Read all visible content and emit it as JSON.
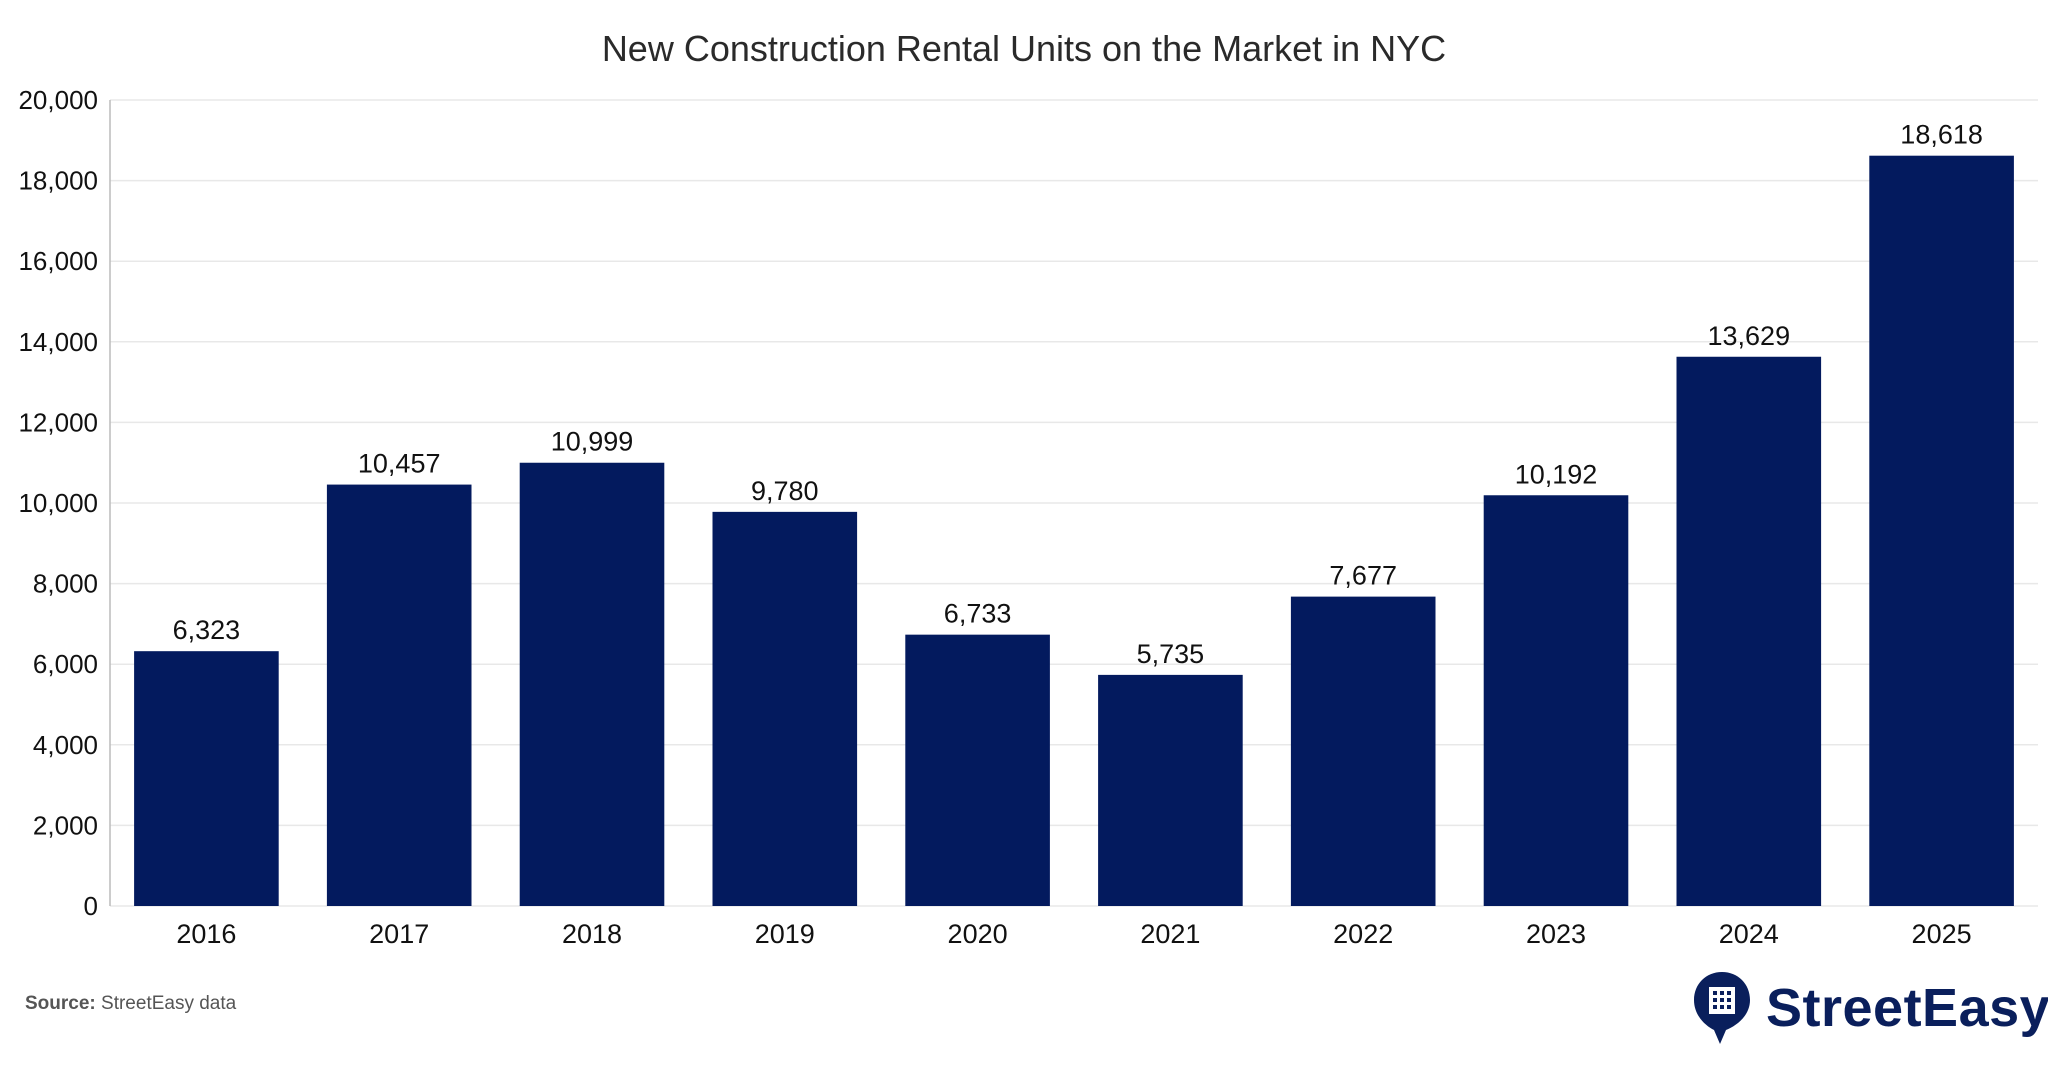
{
  "chart_data": {
    "type": "bar",
    "title": "New Construction Rental Units on the Market in NYC",
    "xlabel": "",
    "ylabel": "",
    "categories": [
      "2016",
      "2017",
      "2018",
      "2019",
      "2020",
      "2021",
      "2022",
      "2023",
      "2024",
      "2025"
    ],
    "values": [
      6323,
      10457,
      10999,
      9780,
      6733,
      5735,
      7677,
      10192,
      13629,
      18618
    ],
    "value_labels": [
      "6,323",
      "10,457",
      "10,999",
      "9,780",
      "6,733",
      "5,735",
      "7,677",
      "10,192",
      "13,629",
      "18,618"
    ],
    "ylim": [
      0,
      20000
    ],
    "yticks": [
      0,
      2000,
      4000,
      6000,
      8000,
      10000,
      12000,
      14000,
      16000,
      18000,
      20000
    ],
    "ytick_labels": [
      "0",
      "2,000",
      "4,000",
      "6,000",
      "8,000",
      "10,000",
      "12,000",
      "14,000",
      "16,000",
      "18,000",
      "20,000"
    ],
    "grid": true,
    "legend": "none",
    "colors": {
      "bar": "#031a5e",
      "grid": "#e8e8e8",
      "axis": "#bbbbbb",
      "text": "#111111"
    }
  },
  "source": {
    "label": "Source:",
    "text": "StreetEasy data"
  },
  "brand": {
    "name": "StreetEasy",
    "icon": "building-pin-icon",
    "color": "#0a1f5c"
  }
}
